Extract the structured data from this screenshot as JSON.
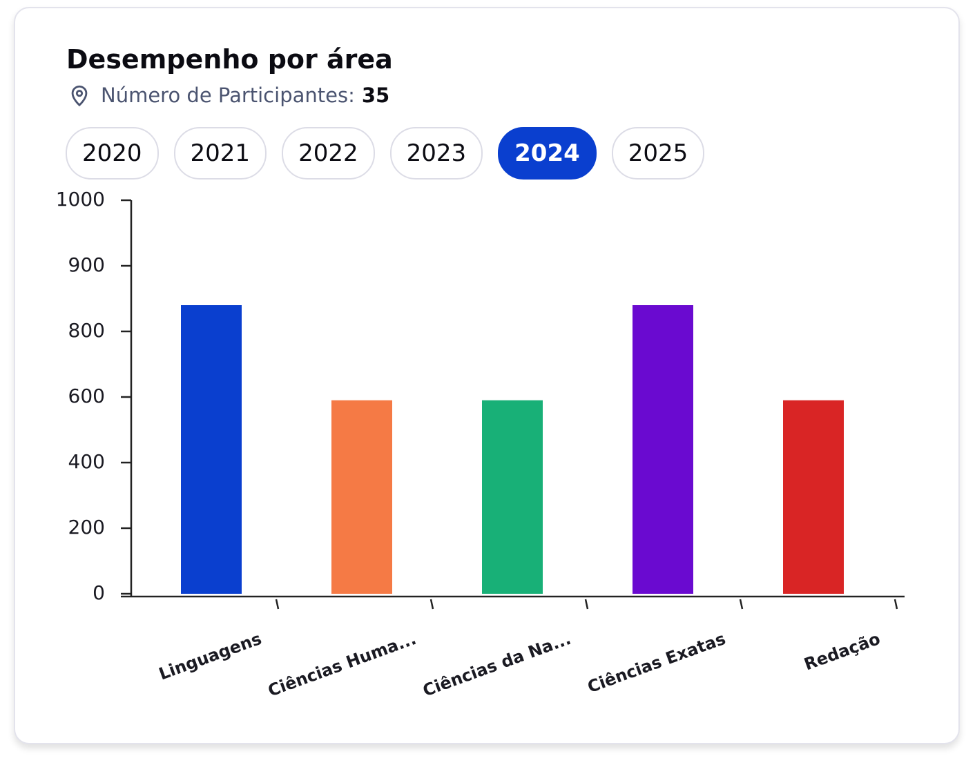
{
  "card": {
    "title": "Desempenho por área",
    "participants_label": "Número de Participantes:",
    "participants_value": "35",
    "years": [
      {
        "label": "2020",
        "active": false
      },
      {
        "label": "2021",
        "active": false
      },
      {
        "label": "2022",
        "active": false
      },
      {
        "label": "2023",
        "active": false
      },
      {
        "label": "2024",
        "active": true
      },
      {
        "label": "2025",
        "active": false
      }
    ]
  },
  "chart_data": {
    "type": "bar",
    "categories": [
      "Linguagens",
      "Ciências Huma...",
      "Ciências da Na...",
      "Ciências Exatas",
      "Redação"
    ],
    "values": [
      840,
      590,
      590,
      840,
      590
    ],
    "colors": [
      "#0a3fcf",
      "#f57a45",
      "#18b077",
      "#6a0ad0",
      "#d92525"
    ],
    "ylim": [
      0,
      1000
    ],
    "yticks": [
      0,
      200,
      400,
      600,
      800,
      900,
      1000
    ],
    "grid": false
  }
}
